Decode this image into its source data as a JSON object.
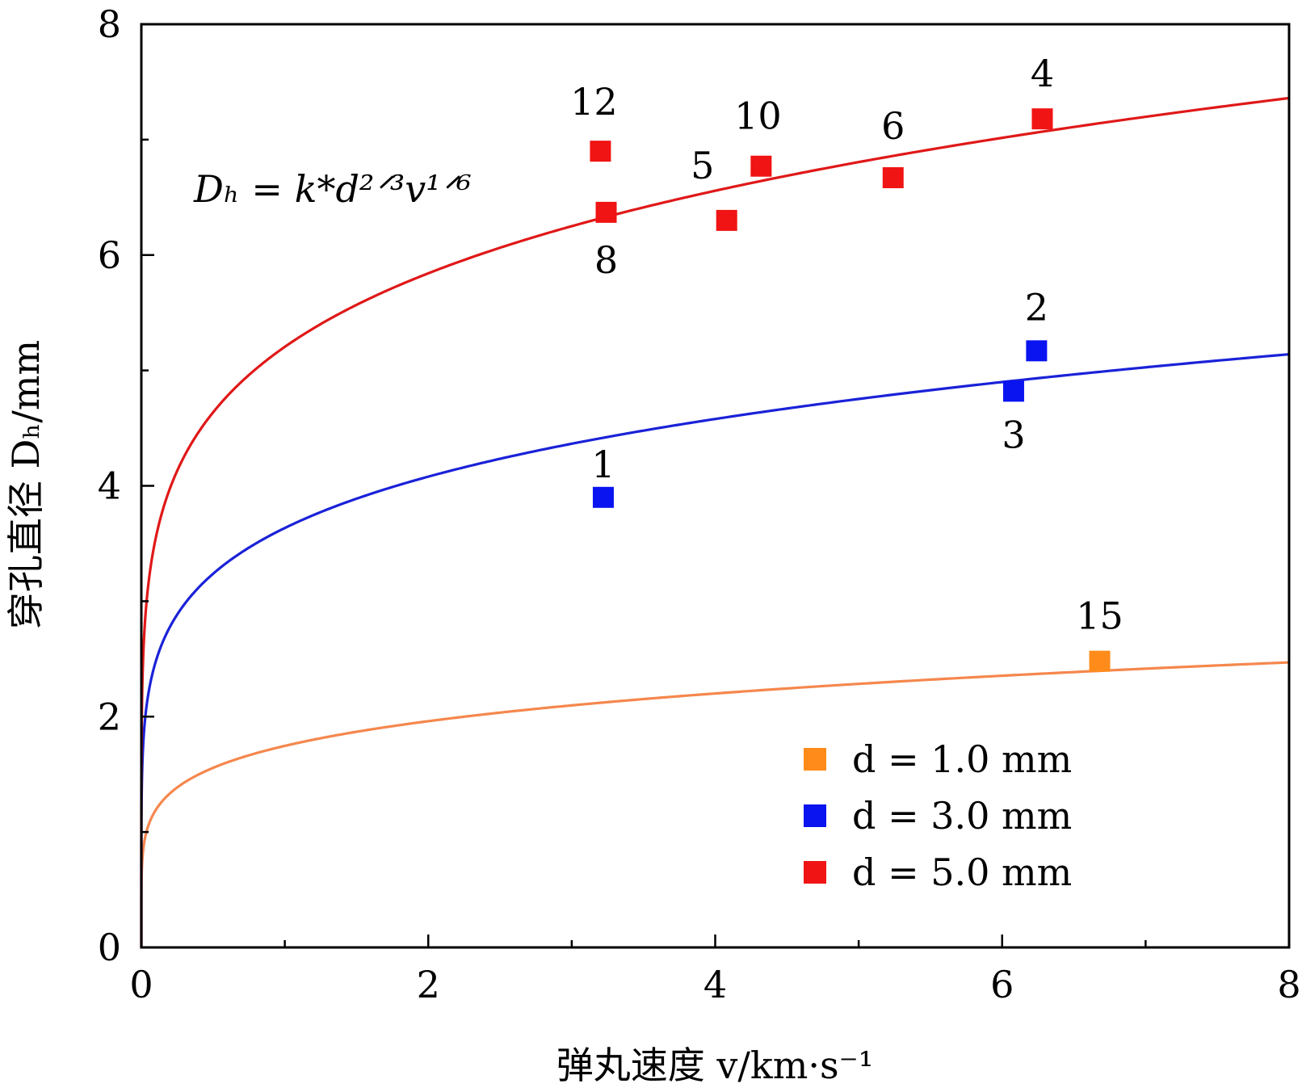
{
  "chart_data": {
    "type": "scatter",
    "title": "",
    "xlabel": "弹丸速度 v/km·s⁻¹",
    "ylabel": "穿孔直径 Dₕ/mm",
    "xlim": [
      0,
      8
    ],
    "ylim": [
      0,
      8
    ],
    "x_ticks": [
      "0",
      "2",
      "4",
      "6",
      "8"
    ],
    "y_ticks": [
      "0",
      "2",
      "4",
      "6",
      "8"
    ],
    "grid": false,
    "legend_position": "bottom-right",
    "formula": "Dₕ = k*d²ᐟ³v¹ᐟ⁶",
    "series": [
      {
        "name": "d = 1.0 mm",
        "diameter_mm": 1.0,
        "color": "#ff8c1a",
        "line_color": "#f5874d",
        "points": [
          {
            "label": "15",
            "x": 6.68,
            "y": 2.48
          }
        ]
      },
      {
        "name": "d = 3.0 mm",
        "diameter_mm": 3.0,
        "color": "#0a14f0",
        "line_color": "#1a22d8",
        "points": [
          {
            "label": "1",
            "x": 3.22,
            "y": 3.9
          },
          {
            "label": "2",
            "x": 6.24,
            "y": 5.17
          },
          {
            "label": "3",
            "x": 6.08,
            "y": 4.82
          }
        ]
      },
      {
        "name": "d = 5.0 mm",
        "diameter_mm": 5.0,
        "color": "#f01414",
        "line_color": "#e01818",
        "points": [
          {
            "label": "12",
            "x": 3.2,
            "y": 6.9
          },
          {
            "label": "8",
            "x": 3.24,
            "y": 6.37
          },
          {
            "label": "5",
            "x": 4.08,
            "y": 6.3
          },
          {
            "label": "10",
            "x": 4.32,
            "y": 6.77
          },
          {
            "label": "6",
            "x": 5.24,
            "y": 6.67
          },
          {
            "label": "4",
            "x": 6.28,
            "y": 7.18
          }
        ]
      }
    ],
    "fit_curves": [
      {
        "series": "d = 1.0 mm",
        "value_at_v8": 2.47
      },
      {
        "series": "d = 3.0 mm",
        "value_at_v8": 5.14
      },
      {
        "series": "d = 5.0 mm",
        "value_at_v8": 7.36
      }
    ]
  }
}
